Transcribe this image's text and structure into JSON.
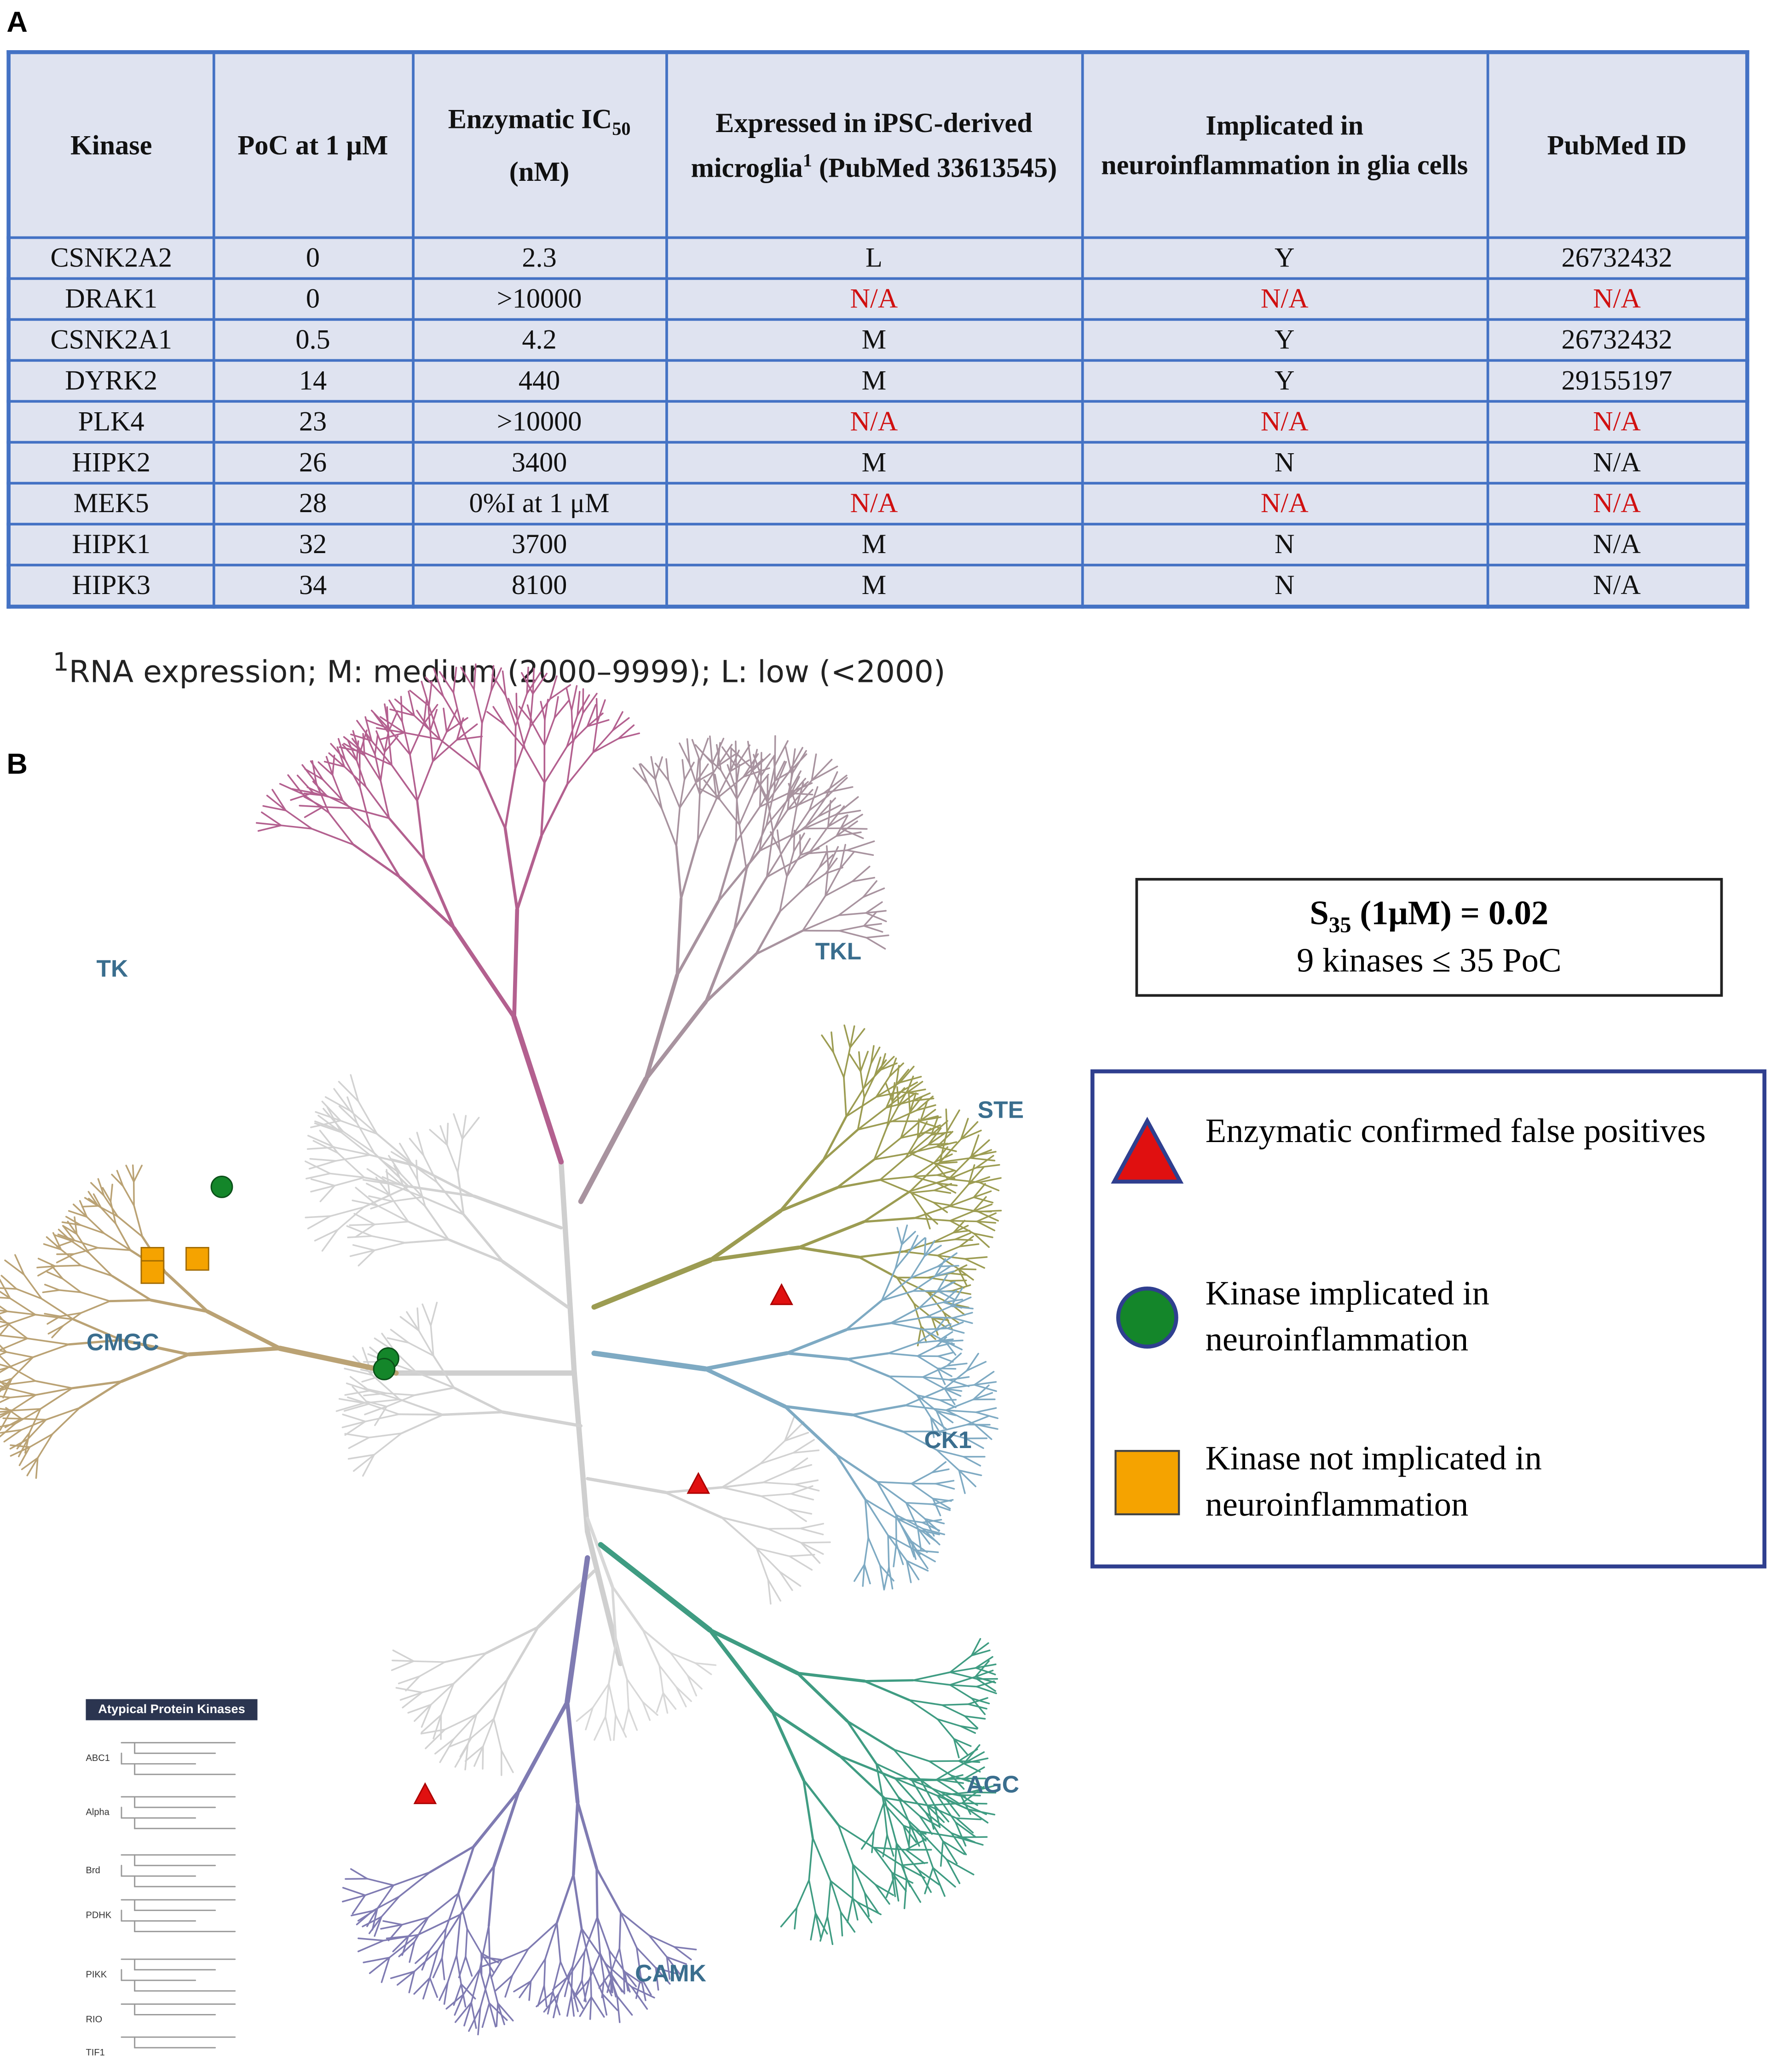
{
  "panel_a": {
    "label": "A",
    "table": {
      "header": [
        {
          "text": "Kinase"
        },
        {
          "text": "PoC at 1 μM"
        },
        {
          "text": "Enzymatic IC",
          "sub": "50",
          "after": "(nM)"
        },
        {
          "text": "Expressed in iPSC-derived microglia",
          "sup": "1",
          "after": "(PubMed 33613545)"
        },
        {
          "text": "Implicated in neuroinflammation in glia cells"
        },
        {
          "text": "PubMed ID"
        }
      ],
      "rows": [
        {
          "cells": [
            "CSNK2A2",
            "0",
            "2.3",
            "L",
            "Y",
            "26732432"
          ]
        },
        {
          "cells": [
            "DRAK1",
            "0",
            ">10000",
            {
              "text": "N/A",
              "color": "#d01010"
            },
            {
              "text": "N/A",
              "color": "#d01010"
            },
            {
              "text": "N/A",
              "color": "#d01010"
            }
          ]
        },
        {
          "cells": [
            "CSNK2A1",
            "0.5",
            "4.2",
            "M",
            "Y",
            "26732432"
          ]
        },
        {
          "cells": [
            "DYRK2",
            "14",
            "440",
            "M",
            "Y",
            "29155197"
          ]
        },
        {
          "cells": [
            "PLK4",
            "23",
            ">10000",
            {
              "text": "N/A",
              "color": "#d01010"
            },
            {
              "text": "N/A",
              "color": "#d01010"
            },
            {
              "text": "N/A",
              "color": "#d01010"
            }
          ]
        },
        {
          "cells": [
            "HIPK2",
            "26",
            "3400",
            "M",
            "N",
            "N/A"
          ]
        },
        {
          "cells": [
            "MEK5",
            "28",
            "0%I at 1 μM",
            {
              "text": "N/A",
              "color": "#d01010"
            },
            {
              "text": "N/A",
              "color": "#d01010"
            },
            {
              "text": "N/A",
              "color": "#d01010"
            }
          ]
        },
        {
          "cells": [
            "HIPK1",
            "32",
            "3700",
            "M",
            "N",
            "N/A"
          ]
        },
        {
          "cells": [
            "HIPK3",
            "34",
            "8100",
            "M",
            "N",
            "N/A"
          ]
        }
      ]
    },
    "footnote": {
      "sup": "1",
      "text": "RNA expression; M: medium (2000–9999); L: low (<2000)"
    }
  },
  "panel_b": {
    "label": "B",
    "groups": [
      "TK",
      "TKL",
      "STE",
      "CK1",
      "AGC",
      "CAMK",
      "CMGC"
    ],
    "atypical": {
      "title": "Atypical Protein Kinases",
      "families": [
        "ABC1",
        "Alpha",
        "Brd",
        "PDHK",
        "PIKK",
        "RIO",
        "TIF1"
      ]
    },
    "score_box": {
      "symbol": "S",
      "sub": "35",
      "rest": "(1μM) = 0.02",
      "line2": "9 kinases ≤ 35 PoC"
    },
    "legend": [
      {
        "shape": "triangle",
        "color": "#e01010",
        "label": "Enzymatic confirmed false positives"
      },
      {
        "shape": "circle",
        "color": "#14862a",
        "label": "Kinase implicated in neuroinflammation"
      },
      {
        "shape": "square",
        "color": "#f5a300",
        "label": "Kinase not implicated in neuroinflammation"
      }
    ]
  }
}
